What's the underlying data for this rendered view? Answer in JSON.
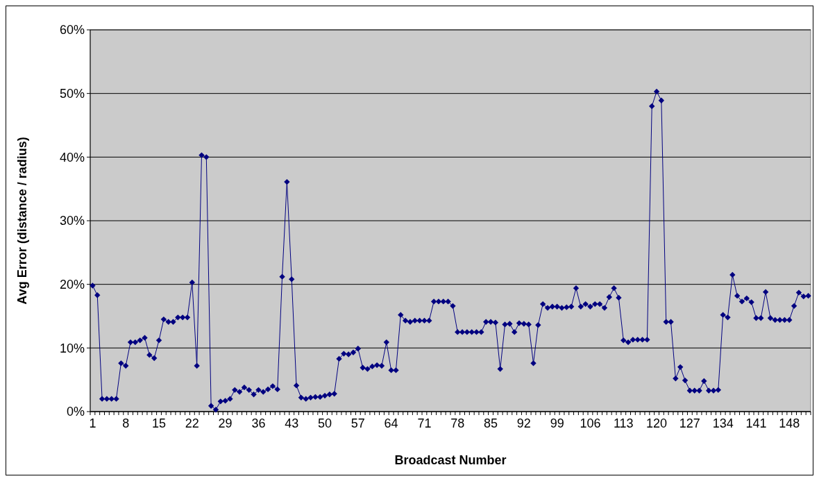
{
  "chart_data": {
    "type": "line",
    "xlabel": "Broadcast Number",
    "ylabel": "Avg Error (distance / radius)",
    "categories": [
      "1",
      null,
      null,
      null,
      null,
      null,
      null,
      "8",
      null,
      null,
      null,
      null,
      null,
      null,
      "15",
      null,
      null,
      null,
      null,
      null,
      null,
      "22",
      null,
      null,
      null,
      null,
      null,
      null,
      "29",
      null,
      null,
      null,
      null,
      null,
      null,
      "36",
      null,
      null,
      null,
      null,
      null,
      null,
      "43",
      null,
      null,
      null,
      null,
      null,
      null,
      "50",
      null,
      null,
      null,
      null,
      null,
      null,
      "57",
      null,
      null,
      null,
      null,
      null,
      null,
      "64",
      null,
      null,
      null,
      null,
      null,
      null,
      "71",
      null,
      null,
      null,
      null,
      null,
      null,
      "78",
      null,
      null,
      null,
      null,
      null,
      null,
      "85",
      null,
      null,
      null,
      null,
      null,
      null,
      "92",
      null,
      null,
      null,
      null,
      null,
      null,
      "99",
      null,
      null,
      null,
      null,
      null,
      null,
      "106",
      null,
      null,
      null,
      null,
      null,
      null,
      "113",
      null,
      null,
      null,
      null,
      null,
      null,
      "120",
      null,
      null,
      null,
      null,
      null,
      null,
      "127",
      null,
      null,
      null,
      null,
      null,
      null,
      "134",
      null,
      null,
      null,
      null,
      null,
      null,
      "141",
      null,
      null,
      null,
      null,
      null,
      null,
      "148",
      null,
      null,
      null,
      null
    ],
    "series": [
      {
        "color": "#000080",
        "values": [
          19.8,
          18.3,
          2.0,
          2.0,
          2.0,
          2.0,
          7.6,
          7.2,
          10.9,
          10.9,
          11.2,
          11.6,
          8.9,
          8.4,
          11.2,
          14.5,
          14.1,
          14.1,
          14.8,
          14.8,
          14.8,
          20.3,
          7.2,
          40.3,
          40.0,
          0.9,
          0.3,
          1.6,
          1.7,
          2.0,
          3.4,
          3.1,
          3.8,
          3.4,
          2.7,
          3.4,
          3.1,
          3.5,
          4.0,
          3.5,
          21.2,
          36.1,
          20.8,
          4.1,
          2.2,
          2.0,
          2.2,
          2.3,
          2.3,
          2.5,
          2.7,
          2.8,
          8.3,
          9.1,
          9.0,
          9.3,
          9.9,
          6.9,
          6.7,
          7.1,
          7.3,
          7.2,
          10.9,
          6.5,
          6.5,
          15.2,
          14.3,
          14.1,
          14.3,
          14.3,
          14.3,
          14.3,
          17.3,
          17.3,
          17.3,
          17.3,
          16.6,
          12.5,
          12.5,
          12.5,
          12.5,
          12.5,
          12.5,
          14.1,
          14.1,
          14.0,
          6.7,
          13.7,
          13.8,
          12.5,
          13.9,
          13.8,
          13.7,
          7.6,
          13.6,
          16.9,
          16.3,
          16.5,
          16.5,
          16.3,
          16.4,
          16.5,
          19.4,
          16.5,
          16.9,
          16.5,
          16.9,
          16.9,
          16.3,
          18.0,
          19.4,
          17.9,
          11.2,
          10.9,
          11.3,
          11.3,
          11.3,
          11.3,
          48.0,
          50.3,
          48.9,
          14.1,
          14.1,
          5.2,
          7.0,
          4.9,
          3.3,
          3.3,
          3.3,
          4.8,
          3.3,
          3.3,
          3.4,
          15.2,
          14.8,
          21.5,
          18.2,
          17.3,
          17.8,
          17.2,
          14.7,
          14.7,
          18.8,
          14.7,
          14.4,
          14.4,
          14.4,
          14.4,
          16.6,
          18.7,
          18.1,
          18.2
        ]
      }
    ],
    "ylim": [
      0,
      60
    ],
    "yticks": [
      {
        "value": 0,
        "label": "0%"
      },
      {
        "value": 10,
        "label": "10%"
      },
      {
        "value": 20,
        "label": "20%"
      },
      {
        "value": 30,
        "label": "30%"
      },
      {
        "value": 40,
        "label": "40%"
      },
      {
        "value": 50,
        "label": "50%"
      },
      {
        "value": 60,
        "label": "60%"
      }
    ],
    "grid": "y",
    "marker": "diamond",
    "line_style": "solid"
  }
}
